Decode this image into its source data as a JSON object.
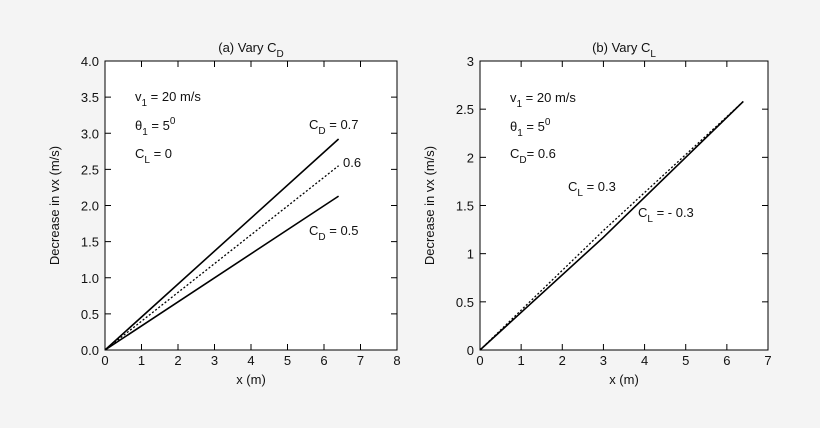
{
  "chart_data": [
    {
      "type": "line",
      "title": [
        "(a)  Vary C",
        {
          "sub": "D"
        }
      ],
      "xlabel": "x  (m)",
      "ylabel": "Decrease in vx  (m/s)",
      "xlim": [
        0,
        8
      ],
      "xticks": [
        0,
        1,
        2,
        3,
        4,
        5,
        6,
        7,
        8
      ],
      "ylim": [
        0,
        4
      ],
      "yticks": [
        {
          "value": 0,
          "label": "0.0"
        },
        0.5,
        {
          "value": 1,
          "label": "1.0"
        },
        1.5,
        {
          "value": 2,
          "label": "2.0"
        },
        2.5,
        {
          "value": 3,
          "label": "3.0"
        },
        3.5,
        {
          "value": 4,
          "label": "4.0"
        }
      ],
      "series": [
        {
          "color": "#000000",
          "dash": "solid",
          "x": [
            0,
            6.4
          ],
          "values": [
            0,
            2.92
          ]
        },
        {
          "color": "#000000",
          "dash": "dotted",
          "x": [
            0,
            6.4
          ],
          "values": [
            0,
            2.55
          ]
        },
        {
          "color": "#000000",
          "dash": "solid",
          "x": [
            0,
            6.4
          ],
          "values": [
            0,
            2.13
          ]
        }
      ],
      "annotations": [
        [
          "v",
          {
            "sub": "1"
          },
          " = 20 m/s"
        ],
        [
          "θ",
          {
            "sub": "1"
          },
          " = 5",
          {
            "sup": "0"
          }
        ],
        [
          "C",
          {
            "sub": "L"
          },
          " = 0"
        ],
        [
          "C",
          {
            "sub": "D"
          },
          " = 0.7"
        ],
        [
          "0.6"
        ],
        [
          "C",
          {
            "sub": "D"
          },
          " = 0.5"
        ]
      ]
    },
    {
      "type": "line",
      "title": [
        "(b)  Vary C",
        {
          "sub": "L"
        }
      ],
      "xlabel": "x  (m)",
      "ylabel": "Decrease in vx  (m/s)",
      "xlim": [
        0,
        7
      ],
      "xticks": [
        0,
        1,
        2,
        3,
        4,
        5,
        6,
        7
      ],
      "ylim": [
        0,
        3
      ],
      "yticks": [
        0,
        0.5,
        1,
        1.5,
        2,
        2.5,
        3
      ],
      "series": [
        {
          "color": "#000000",
          "dash": "dotted",
          "x": [
            0,
            3,
            6.4
          ],
          "values": [
            0,
            1.24,
            2.58
          ]
        },
        {
          "color": "#000000",
          "dash": "solid",
          "x": [
            0,
            3,
            6.4
          ],
          "values": [
            0,
            1.17,
            2.58
          ]
        }
      ],
      "annotations": [
        [
          "v",
          {
            "sub": "1"
          },
          " = 20 m/s"
        ],
        [
          "θ",
          {
            "sub": "1"
          },
          " = 5",
          {
            "sup": "0"
          }
        ],
        [
          "C",
          {
            "sub": "D"
          },
          "= 0.6"
        ],
        [
          "C",
          {
            "sub": "L"
          },
          " = 0.3"
        ],
        [
          "C",
          {
            "sub": "L"
          },
          " = - 0.3"
        ]
      ]
    }
  ]
}
